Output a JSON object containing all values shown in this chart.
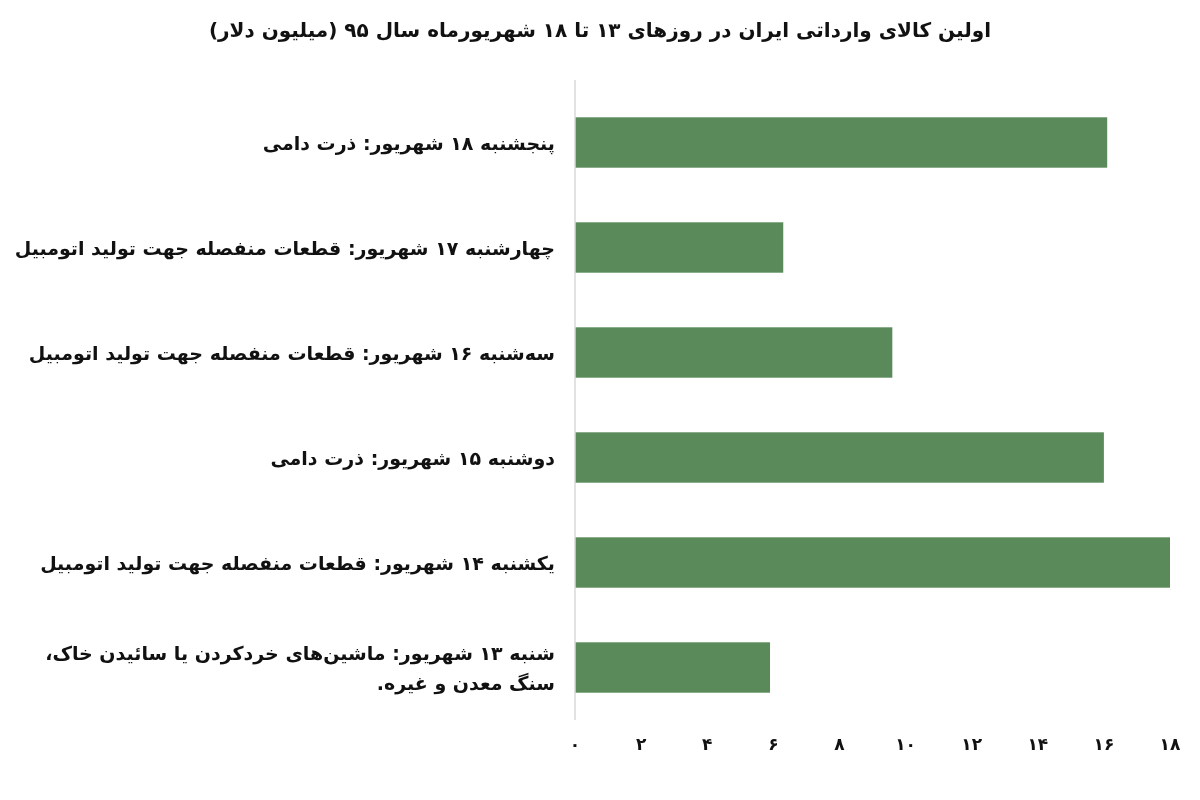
{
  "chart_data": {
    "type": "bar",
    "orientation": "horizontal",
    "title": "اولین کالای وارداتی ایران در روزهای ۱۳ تا ۱۸ شهریورماه سال ۹۵ (میلیون دلار)",
    "categories": [
      "پنجشنبه ۱۸ شهریور: ذرت دامی",
      "چهارشنبه ۱۷ شهریور: قطعات منفصله جهت تولید اتومبیل",
      "سه‌شنبه ۱۶ شهریور: قطعات منفصله جهت تولید اتومبیل",
      "دوشنبه ۱۵ شهریور: ذرت دامی",
      "یکشنبه ۱۴ شهریور: قطعات منفصله جهت تولید اتومبیل",
      "شنبه ۱۳ شهریور: ماشین‌های خردکردن یا سائیدن خاک، سنگ معدن و غیره."
    ],
    "values": [
      16.1,
      6.3,
      9.6,
      16.0,
      18,
      5.9
    ],
    "color": "#5b8a5a",
    "xlim": [
      0,
      18
    ],
    "xticks": [
      {
        "value": 0,
        "label": "۰"
      },
      {
        "value": 2,
        "label": "۲"
      },
      {
        "value": 4,
        "label": "۴"
      },
      {
        "value": 6,
        "label": "۶"
      },
      {
        "value": 8,
        "label": "۸"
      },
      {
        "value": 10,
        "label": "۱۰"
      },
      {
        "value": 12,
        "label": "۱۲"
      },
      {
        "value": 14,
        "label": "۱۴"
      },
      {
        "value": 16,
        "label": "۱۶"
      },
      {
        "value": 18,
        "label": "۱۸"
      }
    ],
    "grid": false
  }
}
